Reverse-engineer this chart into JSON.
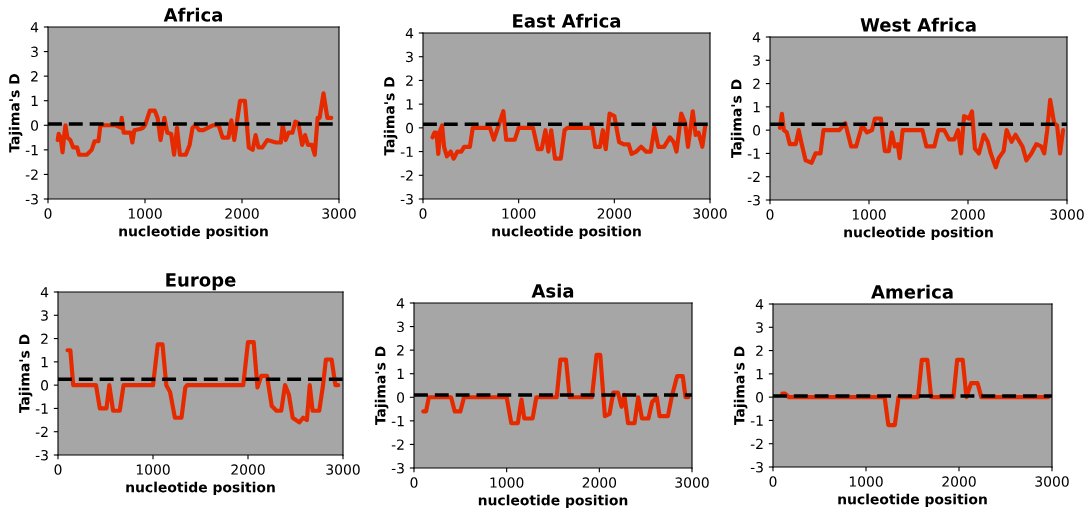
{
  "chart_data": [
    {
      "type": "line",
      "title": "Africa",
      "xlabel": "nucleotide position",
      "ylabel": "Tajima's D",
      "xlim": [
        0,
        3000
      ],
      "ylim": [
        -3,
        4
      ],
      "xticks": [
        0,
        1000,
        2000,
        3000
      ],
      "yticks": [
        -3,
        -2,
        -1,
        0,
        1,
        2,
        3,
        4
      ],
      "grid": false,
      "series": [
        {
          "color": "#e62a00",
          "x": [
            100,
            110,
            130,
            150,
            170,
            180,
            200,
            230,
            260,
            300,
            320,
            400,
            450,
            480,
            520,
            540,
            700,
            750,
            760,
            780,
            850,
            870,
            890,
            950,
            980,
            1000,
            1050,
            1100,
            1130,
            1160,
            1200,
            1230,
            1270,
            1300,
            1330,
            1360,
            1420,
            1460,
            1490,
            1520,
            1560,
            1600,
            1700,
            1760,
            1800,
            1860,
            1890,
            1920,
            1950,
            1980,
            2030,
            2070,
            2110,
            2140,
            2170,
            2210,
            2260,
            2350,
            2400,
            2420,
            2450,
            2480,
            2520,
            2550,
            2580,
            2620,
            2650,
            2680,
            2720,
            2750,
            2780,
            2800,
            2840,
            2880,
            2920
          ],
          "values": [
            -0.6,
            -0.35,
            -0.5,
            -1.1,
            -0.3,
            0,
            -0.5,
            -0.6,
            -0.9,
            -0.9,
            -1.2,
            -1.2,
            -1.0,
            -0.65,
            -0.65,
            0,
            0,
            -0.1,
            0.3,
            -0.3,
            -0.3,
            -0.7,
            -0.2,
            -0.15,
            -0.1,
            0,
            0.6,
            0.6,
            0.3,
            -0.6,
            0.3,
            -0.3,
            -0.35,
            -1.2,
            -0.1,
            -1.2,
            -1.2,
            -0.8,
            -0.1,
            0,
            -0.2,
            -0.2,
            0,
            0,
            -0.5,
            -0.5,
            0.2,
            -0.6,
            0.2,
            1.0,
            1.0,
            -0.9,
            -1.0,
            -0.4,
            -0.9,
            -0.9,
            -0.6,
            -0.7,
            -0.7,
            0,
            -0.6,
            -0.3,
            -0.3,
            0.15,
            0.1,
            -0.8,
            -0.4,
            -0.8,
            -0.8,
            -1.2,
            0.3,
            0.3,
            1.3,
            0.3,
            0.3
          ]
        }
      ],
      "ref_lines": [
        {
          "axis": "y",
          "value": 0.05,
          "color": "#000000",
          "line_style": "dashed"
        }
      ]
    },
    {
      "type": "line",
      "title": "East Africa",
      "xlabel": "nucleotide position",
      "ylabel": "Tajima's D",
      "xlim": [
        0,
        3000
      ],
      "ylim": [
        -3,
        4
      ],
      "xticks": [
        0,
        1000,
        2000,
        3000
      ],
      "yticks": [
        -3,
        -2,
        -1,
        0,
        1,
        2,
        3,
        4
      ],
      "grid": false,
      "series": [
        {
          "color": "#e62a00",
          "x": [
            100,
            120,
            140,
            160,
            180,
            200,
            220,
            250,
            290,
            320,
            360,
            400,
            430,
            490,
            520,
            700,
            740,
            790,
            840,
            870,
            960,
            1000,
            1150,
            1200,
            1240,
            1280,
            1310,
            1340,
            1380,
            1440,
            1480,
            1510,
            1770,
            1800,
            1850,
            1880,
            1910,
            1950,
            2000,
            2050,
            2100,
            2150,
            2180,
            2230,
            2280,
            2330,
            2380,
            2420,
            2460,
            2520,
            2580,
            2620,
            2650,
            2700,
            2740,
            2770,
            2820,
            2850,
            2880,
            2920,
            2950
          ],
          "values": [
            -0.4,
            -0.2,
            -0.2,
            -1.1,
            -0.1,
            0.1,
            -0.8,
            -1.2,
            -1.0,
            -1.3,
            -1.0,
            -1.0,
            -0.8,
            -0.8,
            0,
            0,
            -0.5,
            0.1,
            0.7,
            -0.5,
            -0.5,
            0,
            0,
            -0.9,
            -0.9,
            -0.1,
            -1.0,
            -0.1,
            -1.3,
            -1.3,
            -0.1,
            0,
            0,
            -0.8,
            -0.8,
            -0.1,
            -0.9,
            0.6,
            0.5,
            -0.6,
            -0.7,
            -0.7,
            -1.1,
            -1.0,
            -0.8,
            -1.0,
            -1.0,
            0,
            -0.8,
            -0.8,
            -0.4,
            -0.6,
            -1.0,
            0.6,
            0.2,
            -0.8,
            0.7,
            -0.3,
            -0.2,
            -0.8,
            0.1
          ]
        }
      ],
      "ref_lines": [
        {
          "axis": "y",
          "value": 0.15,
          "color": "#000000",
          "line_style": "dashed"
        }
      ]
    },
    {
      "type": "line",
      "title": "West Africa",
      "xlabel": "nucleotide position",
      "ylabel": "Tajima's D",
      "xlim": [
        0,
        3000
      ],
      "ylim": [
        -3,
        4
      ],
      "xticks": [
        0,
        1000,
        2000,
        3000
      ],
      "yticks": [
        -3,
        -2,
        -1,
        0,
        1,
        2,
        3,
        4
      ],
      "grid": false,
      "series": [
        {
          "color": "#e62a00",
          "x": [
            100,
            120,
            140,
            170,
            200,
            260,
            290,
            320,
            360,
            420,
            460,
            510,
            540,
            700,
            760,
            820,
            870,
            930,
            980,
            1030,
            1060,
            1120,
            1160,
            1200,
            1230,
            1260,
            1290,
            1310,
            1340,
            1540,
            1580,
            1660,
            1700,
            1760,
            1810,
            1860,
            1900,
            1930,
            1960,
            2010,
            2040,
            2070,
            2110,
            2160,
            2200,
            2230,
            2280,
            2310,
            2360,
            2390,
            2440,
            2480,
            2550,
            2590,
            2640,
            2690,
            2740,
            2770,
            2800,
            2830,
            2870,
            2900,
            2930,
            2960
          ],
          "values": [
            0.1,
            0.7,
            0,
            -0.1,
            -0.6,
            -0.6,
            0,
            -0.6,
            -1.3,
            -1.4,
            -1.0,
            -1.0,
            0,
            0,
            0.3,
            -0.7,
            -0.7,
            0.2,
            -0.1,
            0,
            0.5,
            0.5,
            -0.9,
            -0.9,
            -0.1,
            -0.7,
            -0.6,
            -1.2,
            0,
            0,
            -0.7,
            -0.7,
            0,
            0,
            -0.4,
            -0.4,
            0,
            -1.0,
            0.6,
            0.5,
            0.8,
            -0.8,
            -1.0,
            -0.2,
            -0.5,
            -1.0,
            -1.6,
            -1.2,
            -0.9,
            0,
            -0.5,
            -0.2,
            -0.7,
            -1.3,
            -1.0,
            -0.6,
            -0.7,
            -1.0,
            0,
            1.3,
            0.3,
            0.2,
            -1.0,
            0
          ]
        }
      ],
      "ref_lines": [
        {
          "axis": "y",
          "value": 0.25,
          "color": "#000000",
          "line_style": "dashed"
        }
      ]
    },
    {
      "type": "line",
      "title": "Europe",
      "xlabel": "nucleotide position",
      "ylabel": "Tajima's D",
      "xlim": [
        0,
        3000
      ],
      "ylim": [
        -3,
        4
      ],
      "xticks": [
        0,
        1000,
        2000,
        3000
      ],
      "yticks": [
        -3,
        -2,
        -1,
        0,
        1,
        2,
        3,
        4
      ],
      "grid": false,
      "series": [
        {
          "color": "#e62a00",
          "x": [
            100,
            130,
            160,
            400,
            440,
            510,
            540,
            580,
            650,
            690,
            1000,
            1050,
            1100,
            1140,
            1180,
            1230,
            1300,
            1340,
            1360,
            1950,
            2000,
            2060,
            2100,
            2140,
            2200,
            2250,
            2300,
            2350,
            2390,
            2430,
            2470,
            2540,
            2580,
            2620,
            2650,
            2680,
            2750,
            2790,
            2820,
            2880,
            2920,
            2950
          ],
          "values": [
            1.5,
            1.5,
            0,
            0,
            -1.0,
            -1.0,
            0,
            -1.1,
            -1.1,
            0,
            0,
            1.75,
            1.75,
            0,
            -0.3,
            -1.4,
            -1.4,
            -0.1,
            0,
            0,
            1.85,
            1.85,
            -0.1,
            0.4,
            0.4,
            -0.9,
            -1.1,
            -1.1,
            0,
            -0.4,
            -1.4,
            -1.6,
            -1.4,
            -1.5,
            0,
            -1.1,
            -1.1,
            0,
            1.1,
            1.1,
            0,
            0
          ]
        }
      ],
      "ref_lines": [
        {
          "axis": "y",
          "value": 0.25,
          "color": "#000000",
          "line_style": "dashed"
        }
      ]
    },
    {
      "type": "line",
      "title": "Asia",
      "xlabel": "nucleotide position",
      "ylabel": "Tajima's D",
      "xlim": [
        0,
        3000
      ],
      "ylim": [
        -3,
        4
      ],
      "xticks": [
        0,
        1000,
        2000,
        3000
      ],
      "yticks": [
        -3,
        -2,
        -1,
        0,
        1,
        2,
        3,
        4
      ],
      "grid": false,
      "series": [
        {
          "color": "#e62a00",
          "x": [
            100,
            130,
            160,
            400,
            440,
            500,
            540,
            1000,
            1050,
            1120,
            1160,
            1190,
            1280,
            1320,
            1540,
            1580,
            1640,
            1680,
            1920,
            1970,
            2010,
            2060,
            2110,
            2150,
            2200,
            2240,
            2270,
            2310,
            2380,
            2420,
            2460,
            2530,
            2570,
            2620,
            2650,
            2740,
            2780,
            2840,
            2900,
            2930,
            2960
          ],
          "values": [
            -0.6,
            -0.6,
            0,
            0,
            -0.6,
            -0.6,
            0,
            0,
            -1.1,
            -1.1,
            -0.1,
            -0.9,
            -0.9,
            0,
            0,
            1.6,
            1.6,
            0,
            0,
            1.8,
            1.8,
            -0.8,
            -0.7,
            0.2,
            0.2,
            -0.4,
            0.1,
            -1.1,
            -1.1,
            0,
            -0.9,
            -0.9,
            -0.2,
            0,
            -0.8,
            -0.8,
            0,
            0.9,
            0.9,
            0,
            0
          ]
        }
      ],
      "ref_lines": [
        {
          "axis": "y",
          "value": 0.1,
          "color": "#000000",
          "line_style": "dashed"
        }
      ]
    },
    {
      "type": "line",
      "title": "America",
      "xlabel": "nucleotide position",
      "ylabel": "Tajima's D",
      "xlim": [
        0,
        3000
      ],
      "ylim": [
        -3,
        4
      ],
      "xticks": [
        0,
        1000,
        2000,
        3000
      ],
      "yticks": [
        -3,
        -2,
        -1,
        0,
        1,
        2,
        3,
        4
      ],
      "grid": false,
      "series": [
        {
          "color": "#e62a00",
          "x": [
            100,
            130,
            170,
            1200,
            1240,
            1310,
            1350,
            1560,
            1600,
            1660,
            1700,
            1940,
            1980,
            2040,
            2080,
            2130,
            2200,
            2240,
            2960
          ],
          "values": [
            0.15,
            0.15,
            0,
            0,
            -1.2,
            -1.2,
            0,
            0,
            1.6,
            1.6,
            0,
            0,
            1.6,
            1.6,
            0,
            0.6,
            0.6,
            0,
            0
          ]
        }
      ],
      "ref_lines": [
        {
          "axis": "y",
          "value": 0.05,
          "color": "#000000",
          "line_style": "dashed"
        }
      ]
    }
  ]
}
